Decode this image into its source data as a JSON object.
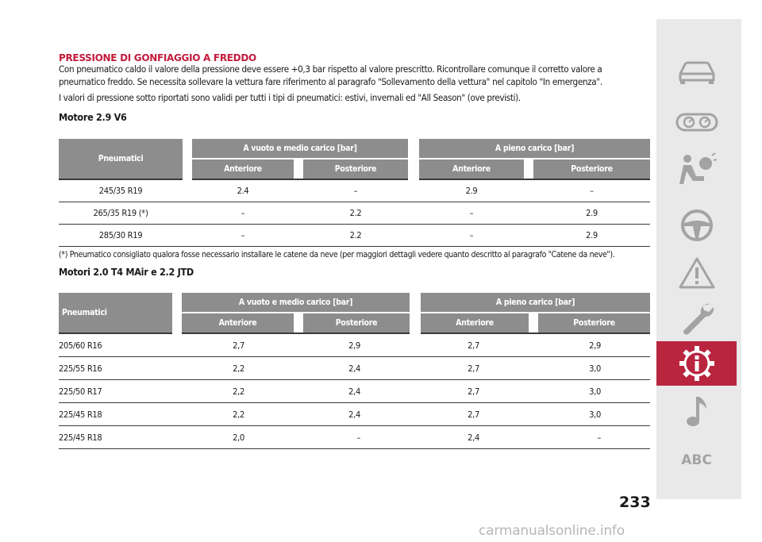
{
  "section_title": "PRESSIONE DI GONFIAGGIO A FREDDO",
  "paragraphs": [
    "Con pneumatico caldo il valore della pressione deve essere +0,3 bar rispetto al valore prescritto. Ricontrollare comunque il corretto valore a pneumatico freddo. Se necessita sollevare la vettura fare riferimento al paragrafo \"Sollevamento della vettura\" nel capitolo \"In emergenza\".",
    "I valori di pressione sotto riportati sono validi per tutti i tipi di pneumatici: estivi, invernali ed \"All Season\" (ove previsti)."
  ],
  "table1": {
    "title": "Motore 2.9 V6",
    "col_tyres": "Pneumatici",
    "group_empty": "A vuoto e medio carico [bar]",
    "group_full": "A pieno carico [bar]",
    "front": "Anteriore",
    "rear": "Posteriore",
    "rows": [
      [
        "245/35 R19",
        "2.4",
        "–",
        "2.9",
        "–"
      ],
      [
        "265/35 R19 (*)",
        "–",
        "2.2",
        "–",
        "2.9"
      ],
      [
        "285/30 R19",
        "–",
        "2.2",
        "–",
        "2.9"
      ]
    ],
    "note": "(*) Pneumatico consigliato qualora fosse necessario installare le catene da neve (per maggiori dettagli vedere quanto descritto al paragrafo \"Catene da neve\")."
  },
  "table2": {
    "title": "Motori 2.0 T4 MAir e 2.2 JTD",
    "col_tyres": "Pneumatici",
    "group_empty": "A vuoto e medio carico [bar]",
    "group_full": "A pieno carico [bar]",
    "front": "Anteriore",
    "rear": "Posteriore",
    "rows": [
      [
        "205/60 R16",
        "2,7",
        "2,9",
        "2,7",
        "2,9"
      ],
      [
        "225/55 R16",
        "2,2",
        "2,4",
        "2,7",
        "3,0"
      ],
      [
        "225/50 R17",
        "2,2",
        "2,4",
        "2,7",
        "3,0"
      ],
      [
        "225/45 R18",
        "2,2",
        "2,4",
        "2,7",
        "3,0"
      ],
      [
        "225/45 R18",
        "2,0",
        "–",
        "2,4",
        "–"
      ]
    ]
  },
  "page_number": "233",
  "sidebar": {
    "items": [
      "car-icon",
      "dashboard-gauges-icon",
      "airbag-person-icon",
      "steering-wheel-icon",
      "warning-triangle-icon",
      "wrench-icon",
      "info-gear-icon",
      "music-note-icon",
      "ABC"
    ],
    "active_index": 6,
    "active_color": "#b9243f",
    "abc_label": "ABC"
  },
  "watermark": "carmanualsonline.info",
  "colors": {
    "title_red": "#c41a3b",
    "header_gray": "#8d8d8d",
    "sidebar_bg": "#e9e9e9"
  }
}
